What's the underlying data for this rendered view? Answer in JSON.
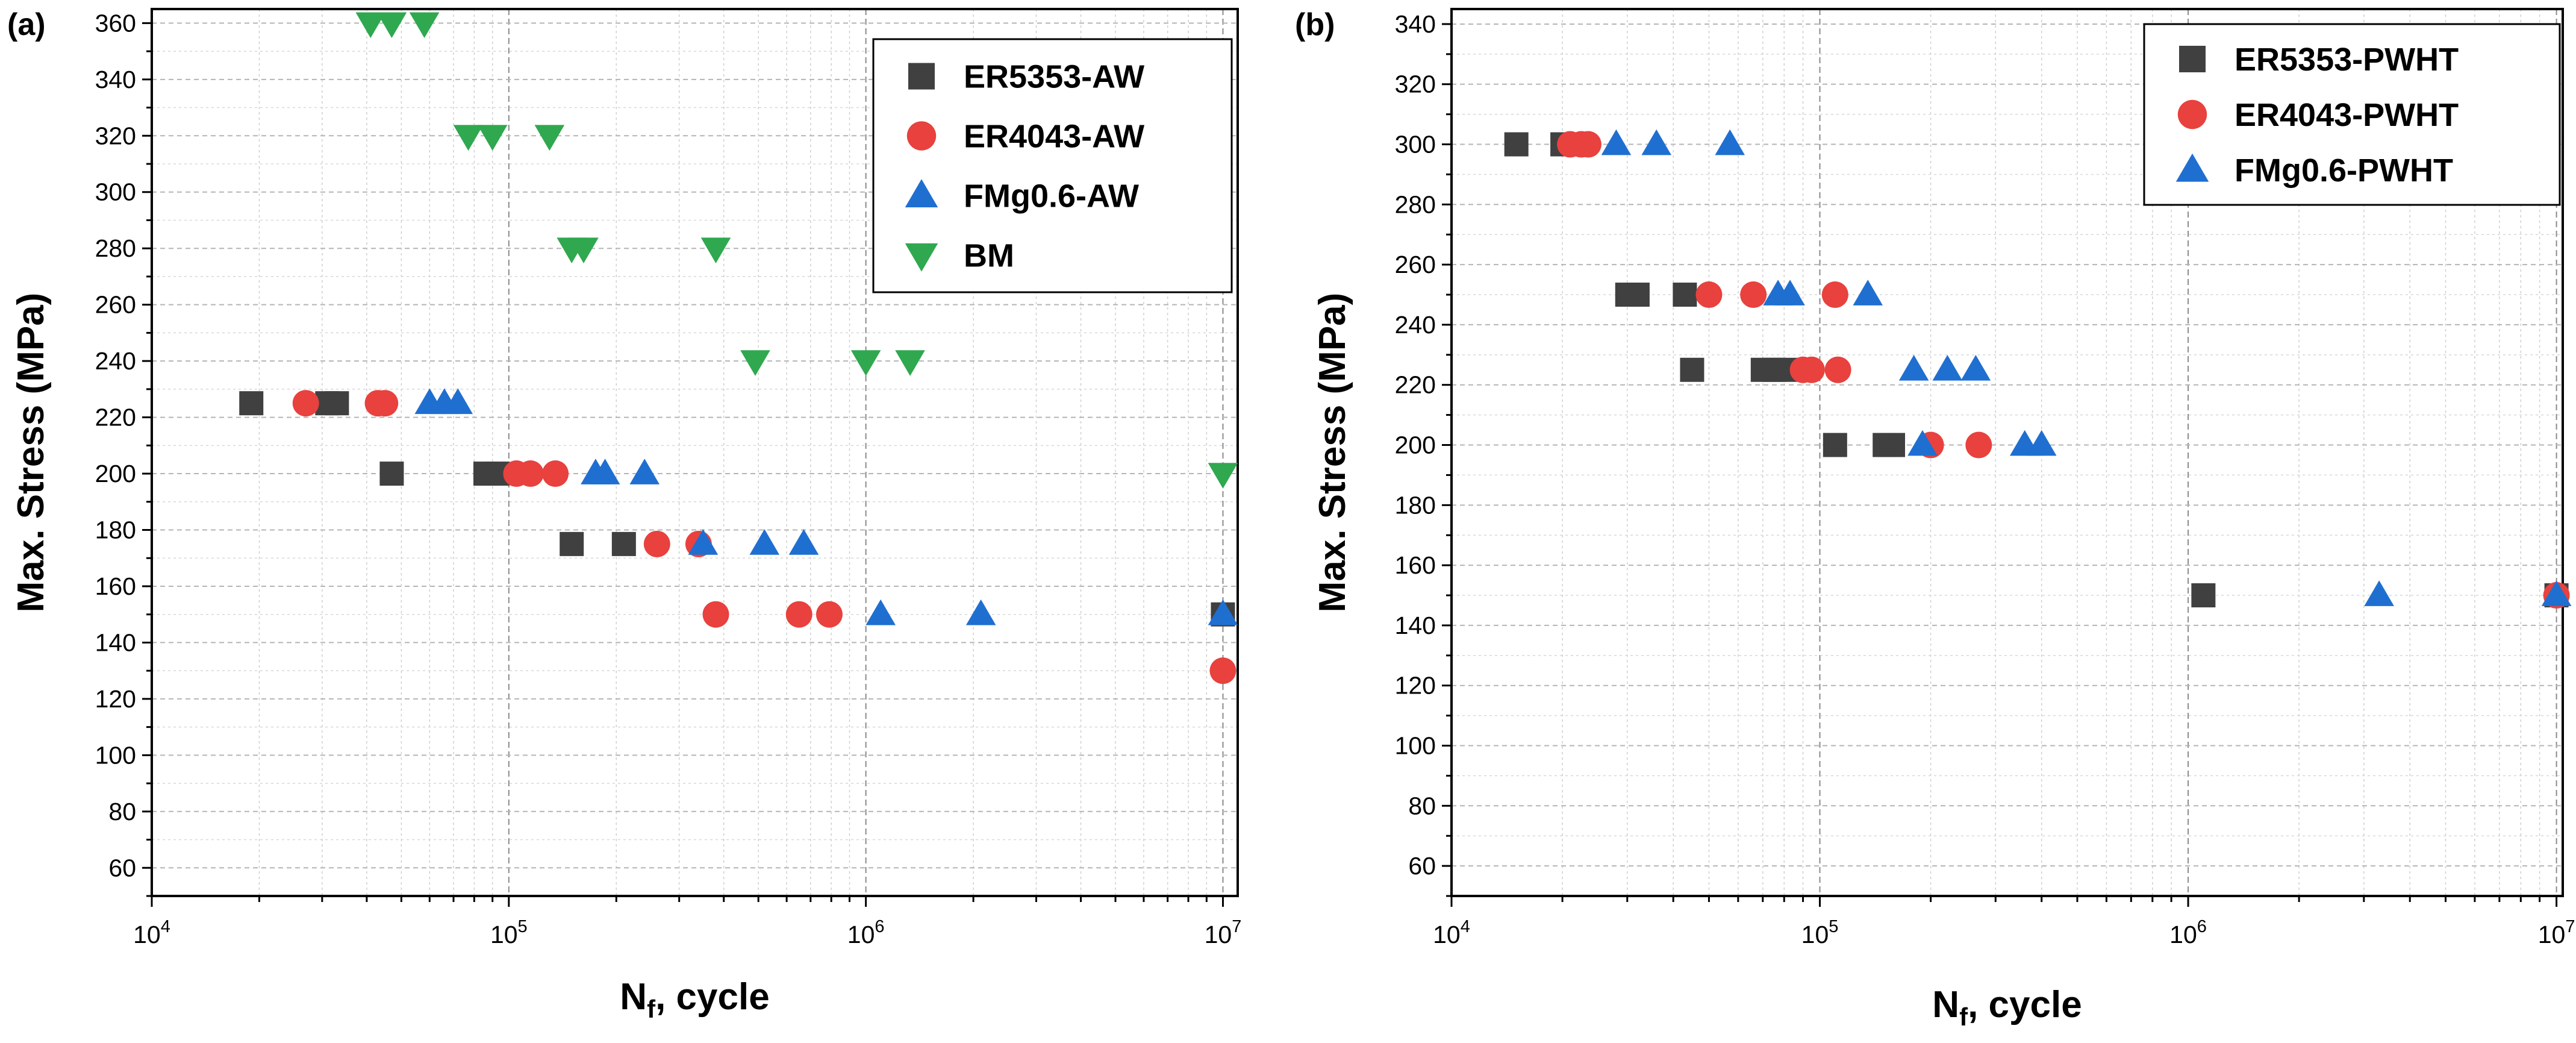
{
  "chart_data": [
    {
      "panel_label": "(a)",
      "type": "scatter",
      "x_scale": "log",
      "xlabel": "N_f, cycle",
      "xlabel_main": "N",
      "xlabel_sub": "f",
      "xlabel_rest": ", cycle",
      "ylabel": "Max. Stress (MPa)",
      "xlim": [
        10000,
        11000000
      ],
      "ylim": [
        50,
        365
      ],
      "x_ticks": [
        {
          "v": 10000,
          "base": "10",
          "exp": "4"
        },
        {
          "v": 100000,
          "base": "10",
          "exp": "5"
        },
        {
          "v": 1000000,
          "base": "10",
          "exp": "6"
        },
        {
          "v": 10000000,
          "base": "10",
          "exp": "7"
        }
      ],
      "y_ticks": [
        60,
        80,
        100,
        120,
        140,
        160,
        180,
        200,
        220,
        240,
        260,
        280,
        300,
        320,
        340,
        360
      ],
      "grid": true,
      "legend_position": "top-right",
      "series": [
        {
          "name": "ER5353-AW",
          "marker": "square",
          "color": "#404040",
          "points": [
            [
              19000,
              225
            ],
            [
              31000,
              225
            ],
            [
              33000,
              225
            ],
            [
              47000,
              200
            ],
            [
              86000,
              200
            ],
            [
              93000,
              200
            ],
            [
              150000,
              175
            ],
            [
              210000,
              175
            ],
            [
              10000000,
              150
            ]
          ]
        },
        {
          "name": "ER4043-AW",
          "marker": "circle",
          "color": "#e8413e",
          "points": [
            [
              27000,
              225
            ],
            [
              43000,
              225
            ],
            [
              45000,
              225
            ],
            [
              105000,
              200
            ],
            [
              115000,
              200
            ],
            [
              135000,
              200
            ],
            [
              260000,
              175
            ],
            [
              340000,
              175
            ],
            [
              380000,
              150
            ],
            [
              650000,
              150
            ],
            [
              790000,
              150
            ],
            [
              10000000,
              130
            ]
          ]
        },
        {
          "name": "FMg0.6-AW",
          "marker": "triangle-up",
          "color": "#1f6fd1",
          "points": [
            [
              60000,
              225
            ],
            [
              66000,
              225
            ],
            [
              72000,
              225
            ],
            [
              175000,
              200
            ],
            [
              186000,
              200
            ],
            [
              240000,
              200
            ],
            [
              350000,
              175
            ],
            [
              520000,
              175
            ],
            [
              670000,
              175
            ],
            [
              1100000,
              150
            ],
            [
              2100000,
              150
            ],
            [
              10000000,
              150
            ]
          ]
        },
        {
          "name": "BM",
          "marker": "triangle-down",
          "color": "#2fa84f",
          "points": [
            [
              41000,
              360
            ],
            [
              47000,
              360
            ],
            [
              58000,
              360
            ],
            [
              77000,
              320
            ],
            [
              90000,
              320
            ],
            [
              130000,
              320
            ],
            [
              150000,
              280
            ],
            [
              162000,
              280
            ],
            [
              380000,
              280
            ],
            [
              490000,
              240
            ],
            [
              1000000,
              240
            ],
            [
              1330000,
              240
            ],
            [
              10000000,
              200
            ]
          ]
        }
      ]
    },
    {
      "panel_label": "(b)",
      "type": "scatter",
      "x_scale": "log",
      "xlabel": "N_f, cycle",
      "xlabel_main": "N",
      "xlabel_sub": "f",
      "xlabel_rest": ", cycle",
      "ylabel": "Max. Stress (MPa)",
      "xlim": [
        10000,
        10400000
      ],
      "ylim": [
        50,
        345
      ],
      "x_ticks": [
        {
          "v": 10000,
          "base": "10",
          "exp": "4"
        },
        {
          "v": 100000,
          "base": "10",
          "exp": "5"
        },
        {
          "v": 1000000,
          "base": "10",
          "exp": "6"
        },
        {
          "v": 10000000,
          "base": "10",
          "exp": "7"
        }
      ],
      "y_ticks": [
        60,
        80,
        100,
        120,
        140,
        160,
        180,
        200,
        220,
        240,
        260,
        280,
        300,
        320,
        340
      ],
      "grid": true,
      "legend_position": "top-right",
      "series": [
        {
          "name": "ER5353-PWHT",
          "marker": "square",
          "color": "#404040",
          "points": [
            [
              15000,
              300
            ],
            [
              20000,
              300
            ],
            [
              30000,
              250
            ],
            [
              32000,
              250
            ],
            [
              43000,
              250
            ],
            [
              45000,
              225
            ],
            [
              70000,
              225
            ],
            [
              75000,
              225
            ],
            [
              81000,
              225
            ],
            [
              110000,
              200
            ],
            [
              150000,
              200
            ],
            [
              158000,
              200
            ],
            [
              1100000,
              150
            ],
            [
              10000000,
              150
            ]
          ]
        },
        {
          "name": "ER4043-PWHT",
          "marker": "circle",
          "color": "#e8413e",
          "points": [
            [
              21000,
              300
            ],
            [
              22500,
              300
            ],
            [
              23500,
              300
            ],
            [
              50000,
              250
            ],
            [
              66000,
              250
            ],
            [
              110000,
              250
            ],
            [
              90000,
              225
            ],
            [
              95000,
              225
            ],
            [
              112000,
              225
            ],
            [
              200000,
              200
            ],
            [
              270000,
              200
            ],
            [
              10000000,
              150
            ]
          ]
        },
        {
          "name": "FMg0.6-PWHT",
          "marker": "triangle-up",
          "color": "#1f6fd1",
          "points": [
            [
              28000,
              300
            ],
            [
              36000,
              300
            ],
            [
              57000,
              300
            ],
            [
              77000,
              250
            ],
            [
              83000,
              250
            ],
            [
              135000,
              250
            ],
            [
              180000,
              225
            ],
            [
              222000,
              225
            ],
            [
              265000,
              225
            ],
            [
              190000,
              200
            ],
            [
              360000,
              200
            ],
            [
              400000,
              200
            ],
            [
              3300000,
              150
            ],
            [
              10000000,
              150
            ]
          ]
        }
      ]
    }
  ]
}
